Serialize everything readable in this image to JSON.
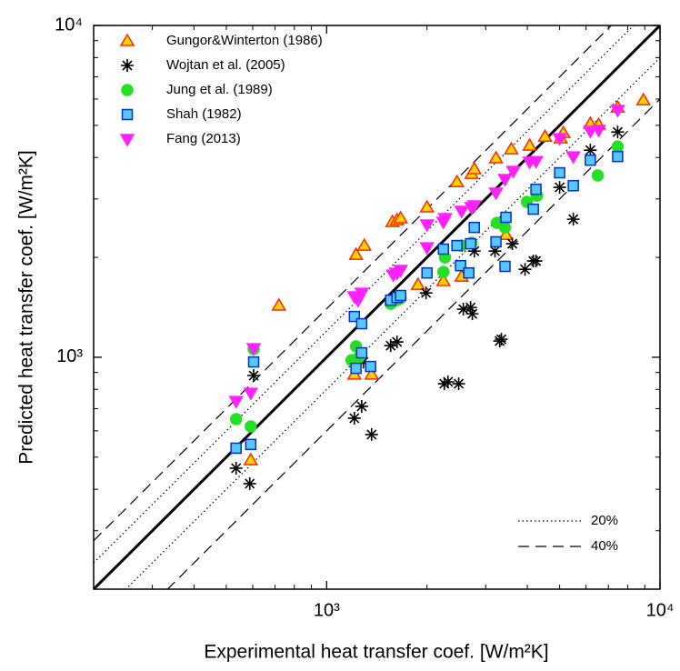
{
  "chart_data": {
    "type": "scatter",
    "x_label": "Experimental heat transfer coef. [W/m²K]",
    "y_label": "Predicted heat transfer coef. [W/m²K]",
    "xlog": true,
    "ylog": true,
    "xlim": [
      200,
      10000
    ],
    "ylim": [
      200,
      10000
    ],
    "xticks": [
      {
        "value": 1000,
        "label": "10³"
      },
      {
        "value": 10000,
        "label": "10⁴"
      }
    ],
    "yticks": [
      {
        "value": 1000,
        "label": "10³"
      },
      {
        "value": 10000,
        "label": "10⁴"
      }
    ],
    "minor_ticks": [
      200,
      300,
      400,
      500,
      600,
      700,
      800,
      900,
      2000,
      3000,
      4000,
      5000,
      6000,
      7000,
      8000,
      9000
    ],
    "legend": "upper left",
    "reference_legend": "lower right",
    "reference_lines": [
      {
        "name": "20%",
        "deviation": 20,
        "style": "dotted"
      },
      {
        "name": "40%",
        "deviation": 40,
        "style": "dashed"
      }
    ],
    "series": [
      {
        "name": "Gungor&Winterton (1986)",
        "marker": "^",
        "color": "#ffd400",
        "edgecolor": "#ff2a00",
        "x": [
          719,
          1225,
          1297,
          1575,
          1626,
          1667,
          2000,
          2460,
          2721,
          2773,
          3221,
          3581,
          4064,
          4519,
          5035,
          5129,
          6180,
          6546,
          7464,
          8913,
          1211,
          1364,
          1879,
          2240,
          2540,
          3451,
          592
        ],
        "values": [
          1432,
          2038,
          2171,
          2558,
          2589,
          2624,
          2831,
          3373,
          3573,
          3690,
          3981,
          4236,
          4345,
          4624,
          4571,
          4745,
          5058,
          5023,
          5662,
          5957,
          887,
          887,
          1655,
          1698,
          1751,
          2340,
          490
        ]
      },
      {
        "name": "Wojtan et al. (2005)",
        "marker": "*",
        "color": "#000000",
        "edgecolor": "#000000",
        "x": [
          535,
          588,
          604,
          1211,
          1274,
          1364,
          1289,
          1556,
          1626,
          1987,
          2254,
          2312,
          2490,
          2570,
          2703,
          2735,
          2773,
          3199,
          3304,
          3343,
          3606,
          3936,
          4169,
          4246,
          5000,
          5495,
          6180,
          7464
        ],
        "values": [
          463,
          416,
          881,
          655,
          711,
          585,
          968,
          1084,
          1112,
          1563,
          832,
          843,
          832,
          1396,
          1413,
          1352,
          2089,
          2089,
          1119,
          1133,
          2198,
          1841,
          1950,
          1950,
          3251,
          2606,
          4209,
          4775
        ]
      },
      {
        "name": "Jung et al. (1989)",
        "marker": "o",
        "color": "#22e022",
        "edgecolor": "#22e022",
        "x": [
          535,
          592,
          604,
          1225,
          1250,
          1556,
          1626,
          1667,
          2240,
          2265,
          2540,
          2721,
          3243,
          3428,
          3990,
          4275,
          6506,
          7464,
          1188
        ],
        "values": [
          651,
          619,
          1058,
          1079,
          1000,
          1449,
          1486,
          1506,
          1808,
          2000,
          2171,
          2213,
          2541,
          2462,
          2938,
          3069,
          3532,
          4318,
          980
        ]
      },
      {
        "name": "Shah (1982)",
        "marker": "s",
        "color": "#55c8ff",
        "edgecolor": "#0030c8",
        "x": [
          535,
          592,
          604,
          1211,
          1274,
          1225,
          1274,
          1355,
          1556,
          1626,
          1667,
          2000,
          2240,
          2460,
          2522,
          2670,
          2703,
          2773,
          3221,
          3428,
          3451,
          4169,
          4246,
          5000,
          5495,
          6180,
          7464
        ],
        "values": [
          532,
          546,
          968,
          1327,
          1262,
          926,
          1031,
          938,
          1486,
          1514,
          1535,
          1795,
          2118,
          2171,
          1888,
          1795,
          2198,
          2462,
          2228,
          1879,
          2641,
          2794,
          3208,
          3597,
          3289,
          3926,
          4027
        ]
      },
      {
        "name": "Fang (2013)",
        "marker": "v",
        "color": "#ff20ff",
        "edgecolor": "#ff20ff",
        "x": [
          535,
          592,
          604,
          1211,
          1242,
          1274,
          1585,
          1626,
          1667,
          2000,
          2240,
          2265,
          2540,
          2721,
          2773,
          3221,
          3428,
          3631,
          4064,
          4246,
          5000,
          5495,
          6180,
          6546,
          7464,
          2000
        ],
        "values": [
          738,
          781,
          1064,
          1525,
          1486,
          1563,
          1774,
          1795,
          1832,
          2512,
          2558,
          2624,
          2761,
          2831,
          2866,
          3133,
          3443,
          3640,
          3881,
          3899,
          4571,
          4027,
          4808,
          4842,
          5559,
          2143
        ]
      }
    ]
  }
}
